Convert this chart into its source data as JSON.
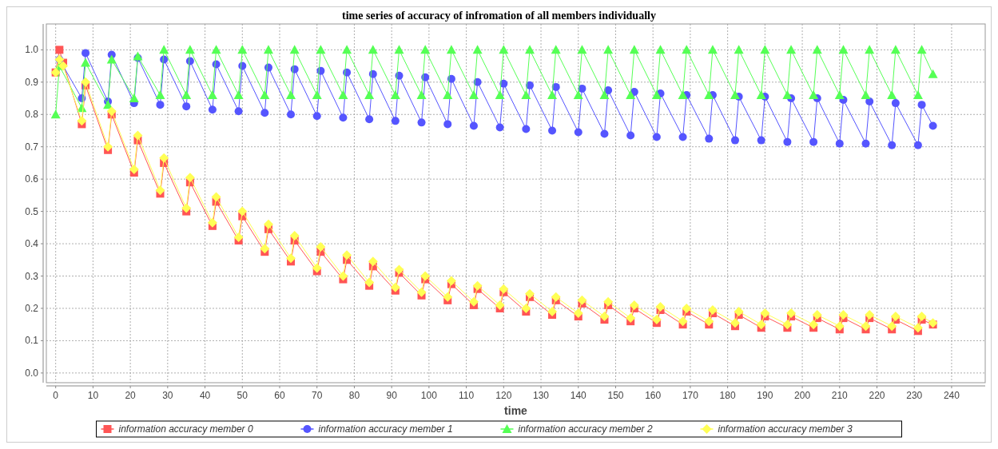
{
  "chart_data": {
    "type": "line",
    "title": "time series of accuracy of infromation of all members individually",
    "xlabel": "time",
    "xlim": [
      -2.5,
      249
    ],
    "ylim": [
      -0.03,
      1.08
    ],
    "xticks": [
      0,
      10,
      20,
      30,
      40,
      50,
      60,
      70,
      80,
      90,
      100,
      110,
      120,
      130,
      140,
      150,
      160,
      170,
      180,
      190,
      200,
      210,
      220,
      230,
      240
    ],
    "yticks": [
      {
        "value": 0,
        "label": "0.0"
      },
      {
        "value": 0.1,
        "label": "0.1"
      },
      {
        "value": 0.2,
        "label": "0.2"
      },
      {
        "value": 0.3,
        "label": "0.3"
      },
      {
        "value": 0.4,
        "label": "0.4"
      },
      {
        "value": 0.5,
        "label": "0.5"
      },
      {
        "value": 0.6,
        "label": "0.6"
      },
      {
        "value": 0.7,
        "label": "0.7"
      },
      {
        "value": 0.8,
        "label": "0.8"
      },
      {
        "value": 0.9,
        "label": "0.9"
      },
      {
        "value": 1,
        "label": "1.0"
      }
    ],
    "grid": true,
    "legend": "bottom",
    "series": [
      {
        "name": "information accuracy member 0",
        "color": "#ff5555",
        "marker": "square",
        "x": [
          0,
          1,
          2,
          7,
          8,
          14,
          15,
          21,
          22,
          28,
          29,
          35,
          36,
          42,
          43,
          49,
          50,
          56,
          57,
          63,
          64,
          70,
          71,
          77,
          78,
          84,
          85,
          91,
          92,
          98,
          99,
          105,
          106,
          112,
          113,
          119,
          120,
          126,
          127,
          133,
          134,
          140,
          141,
          147,
          148,
          154,
          155,
          161,
          162,
          168,
          169,
          175,
          176,
          182,
          183,
          189,
          190,
          196,
          197,
          203,
          204,
          210,
          211,
          217,
          218,
          224,
          225,
          231,
          232,
          235
        ],
        "values": [
          0.93,
          1.0,
          0.96,
          0.77,
          0.89,
          0.69,
          0.8,
          0.62,
          0.72,
          0.555,
          0.65,
          0.5,
          0.59,
          0.455,
          0.53,
          0.41,
          0.485,
          0.375,
          0.445,
          0.345,
          0.41,
          0.315,
          0.375,
          0.29,
          0.35,
          0.27,
          0.33,
          0.255,
          0.31,
          0.24,
          0.29,
          0.225,
          0.275,
          0.21,
          0.26,
          0.2,
          0.25,
          0.19,
          0.235,
          0.18,
          0.225,
          0.175,
          0.215,
          0.165,
          0.21,
          0.16,
          0.2,
          0.155,
          0.195,
          0.15,
          0.19,
          0.15,
          0.185,
          0.145,
          0.18,
          0.14,
          0.175,
          0.14,
          0.175,
          0.14,
          0.17,
          0.135,
          0.17,
          0.135,
          0.17,
          0.135,
          0.165,
          0.13,
          0.165,
          0.15
        ]
      },
      {
        "name": "information accuracy member 1",
        "color": "#5555ff",
        "marker": "circle",
        "x": [
          1,
          7,
          8,
          14,
          15,
          21,
          22,
          28,
          29,
          35,
          36,
          42,
          43,
          49,
          50,
          56,
          57,
          63,
          64,
          70,
          71,
          77,
          78,
          84,
          85,
          91,
          92,
          98,
          99,
          105,
          106,
          112,
          113,
          119,
          120,
          126,
          127,
          133,
          134,
          140,
          141,
          147,
          148,
          154,
          155,
          161,
          162,
          168,
          169,
          175,
          176,
          182,
          183,
          189,
          190,
          196,
          197,
          203,
          204,
          210,
          211,
          217,
          218,
          224,
          225,
          231,
          232,
          235
        ],
        "values": [
          0.97,
          0.85,
          0.99,
          0.84,
          0.985,
          0.835,
          0.975,
          0.83,
          0.97,
          0.825,
          0.965,
          0.815,
          0.955,
          0.81,
          0.95,
          0.805,
          0.945,
          0.8,
          0.94,
          0.795,
          0.935,
          0.79,
          0.93,
          0.785,
          0.925,
          0.78,
          0.92,
          0.775,
          0.915,
          0.77,
          0.91,
          0.765,
          0.9,
          0.76,
          0.895,
          0.755,
          0.89,
          0.75,
          0.885,
          0.745,
          0.88,
          0.74,
          0.875,
          0.735,
          0.87,
          0.73,
          0.865,
          0.73,
          0.86,
          0.725,
          0.86,
          0.72,
          0.855,
          0.72,
          0.855,
          0.715,
          0.85,
          0.715,
          0.85,
          0.71,
          0.845,
          0.71,
          0.84,
          0.705,
          0.835,
          0.705,
          0.83,
          0.765
        ]
      },
      {
        "name": "information accuracy member 2",
        "color": "#55ff55",
        "marker": "triangle",
        "x": [
          0,
          1,
          7,
          8,
          14,
          15,
          21,
          22,
          28,
          29,
          35,
          36,
          42,
          43,
          49,
          50,
          56,
          57,
          63,
          64,
          70,
          71,
          77,
          78,
          84,
          85,
          91,
          92,
          98,
          99,
          105,
          106,
          112,
          113,
          119,
          120,
          126,
          127,
          133,
          134,
          140,
          141,
          147,
          148,
          154,
          155,
          161,
          162,
          168,
          169,
          175,
          176,
          182,
          183,
          189,
          190,
          196,
          197,
          203,
          204,
          210,
          211,
          217,
          218,
          224,
          225,
          231,
          232,
          235
        ],
        "values": [
          0.8,
          0.95,
          0.82,
          0.96,
          0.83,
          0.97,
          0.85,
          0.98,
          0.86,
          1.0,
          0.86,
          1.0,
          0.86,
          1.0,
          0.86,
          1.0,
          0.86,
          1.0,
          0.86,
          1.0,
          0.86,
          1.0,
          0.86,
          1.0,
          0.86,
          1.0,
          0.86,
          1.0,
          0.86,
          1.0,
          0.86,
          1.0,
          0.86,
          1.0,
          0.86,
          1.0,
          0.86,
          1.0,
          0.86,
          1.0,
          0.86,
          1.0,
          0.86,
          1.0,
          0.86,
          1.0,
          0.86,
          1.0,
          0.86,
          1.0,
          0.86,
          1.0,
          0.86,
          1.0,
          0.86,
          1.0,
          0.86,
          1.0,
          0.86,
          1.0,
          0.86,
          1.0,
          0.86,
          1.0,
          0.86,
          1.0,
          0.86,
          1.0,
          0.925
        ]
      },
      {
        "name": "information accuracy member 3",
        "color": "#ffff55",
        "marker": "diamond",
        "x": [
          0,
          1,
          2,
          7,
          8,
          14,
          15,
          21,
          22,
          28,
          29,
          35,
          36,
          42,
          43,
          49,
          50,
          56,
          57,
          63,
          64,
          70,
          71,
          77,
          78,
          84,
          85,
          91,
          92,
          98,
          99,
          105,
          106,
          112,
          113,
          119,
          120,
          126,
          127,
          133,
          134,
          140,
          141,
          147,
          148,
          154,
          155,
          161,
          162,
          168,
          169,
          175,
          176,
          182,
          183,
          189,
          190,
          196,
          197,
          203,
          204,
          210,
          211,
          217,
          218,
          224,
          225,
          231,
          232,
          235
        ],
        "values": [
          0.93,
          0.97,
          0.95,
          0.78,
          0.9,
          0.7,
          0.81,
          0.63,
          0.735,
          0.565,
          0.665,
          0.51,
          0.605,
          0.465,
          0.545,
          0.42,
          0.5,
          0.385,
          0.46,
          0.355,
          0.425,
          0.325,
          0.39,
          0.3,
          0.365,
          0.28,
          0.345,
          0.265,
          0.32,
          0.25,
          0.3,
          0.235,
          0.285,
          0.22,
          0.27,
          0.21,
          0.26,
          0.2,
          0.245,
          0.19,
          0.235,
          0.185,
          0.225,
          0.175,
          0.22,
          0.17,
          0.21,
          0.165,
          0.205,
          0.16,
          0.2,
          0.16,
          0.195,
          0.155,
          0.19,
          0.15,
          0.185,
          0.15,
          0.185,
          0.15,
          0.18,
          0.145,
          0.18,
          0.145,
          0.18,
          0.145,
          0.175,
          0.14,
          0.175,
          0.155
        ]
      }
    ]
  }
}
